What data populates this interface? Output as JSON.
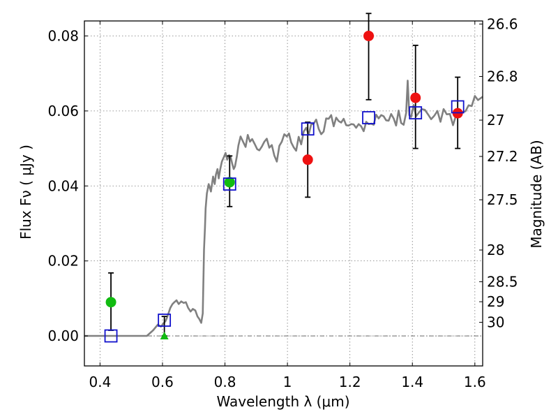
{
  "chart_data": {
    "type": "scatter",
    "title": "",
    "xlabel": "Wavelength  λ (μm)",
    "ylabel": "Flux  Fν  ( μJy )",
    "ylabel_right": "Magnitude (AB)",
    "xlim": [
      0.35,
      1.625
    ],
    "ylim": [
      -0.008,
      0.084
    ],
    "x_ticks": [
      0.4,
      0.6,
      0.8,
      1.0,
      1.2,
      1.4,
      1.6
    ],
    "x_tick_labels": [
      "0.4",
      "0.6",
      "0.8",
      "1",
      "1.2",
      "1.4",
      "1.6"
    ],
    "y_ticks": [
      0.0,
      0.02,
      0.04,
      0.06,
      0.08
    ],
    "y_tick_labels": [
      "0.00",
      "0.02",
      "0.04",
      "0.06",
      "0.08"
    ],
    "right_axis_ticks": [
      {
        "mag": 26.6,
        "label": "26.6"
      },
      {
        "mag": 26.8,
        "label": "26.8"
      },
      {
        "mag": 27.0,
        "label": "27"
      },
      {
        "mag": 27.2,
        "label": "27.2"
      },
      {
        "mag": 27.5,
        "label": "27.5"
      },
      {
        "mag": 28.0,
        "label": "28"
      },
      {
        "mag": 28.5,
        "label": "28.5"
      },
      {
        "mag": 29.0,
        "label": "29"
      },
      {
        "mag": 30.0,
        "label": "30"
      }
    ],
    "grid": true,
    "colors": {
      "model": "#808080",
      "observed_hst": "#ee1111",
      "observed_other": "#11bb11",
      "model_photometry": "#1111cc",
      "errorbar": "#000000",
      "zero_line": "#555555"
    },
    "series": [
      {
        "kind": "line",
        "x": [
          0.35,
          0.55,
          0.57,
          0.585,
          0.595,
          0.605,
          0.61,
          0.615,
          0.625,
          0.632,
          0.638,
          0.645,
          0.652,
          0.66,
          0.668,
          0.675,
          0.682,
          0.69,
          0.697,
          0.705,
          0.712,
          0.718,
          0.724,
          0.729,
          0.733,
          0.736,
          0.738,
          0.742,
          0.748,
          0.755,
          0.762,
          0.767,
          0.771,
          0.776,
          0.78,
          0.785,
          0.79,
          0.797,
          0.802,
          0.807,
          0.813,
          0.818,
          0.823,
          0.828,
          0.832,
          0.838,
          0.843,
          0.85,
          0.858,
          0.866,
          0.873,
          0.88,
          0.887,
          0.895,
          0.903,
          0.91,
          0.918,
          0.926,
          0.934,
          0.942,
          0.95,
          0.958,
          0.966,
          0.974,
          0.982,
          0.99,
          0.998,
          1.005,
          1.012,
          1.02,
          1.028,
          1.036,
          1.044,
          1.052,
          1.06,
          1.068,
          1.076,
          1.084,
          1.092,
          1.1,
          1.108,
          1.116,
          1.124,
          1.132,
          1.14,
          1.148,
          1.156,
          1.164,
          1.172,
          1.18,
          1.188,
          1.196,
          1.204,
          1.212,
          1.22,
          1.228,
          1.236,
          1.244,
          1.252,
          1.26,
          1.268,
          1.276,
          1.284,
          1.292,
          1.3,
          1.308,
          1.316,
          1.324,
          1.332,
          1.34,
          1.348,
          1.356,
          1.364,
          1.372,
          1.38,
          1.385,
          1.39,
          1.396,
          1.404,
          1.412,
          1.42,
          1.43,
          1.44,
          1.45,
          1.46,
          1.47,
          1.48,
          1.49,
          1.5,
          1.51,
          1.52,
          1.53,
          1.54,
          1.55,
          1.56,
          1.57,
          1.58,
          1.59,
          1.6,
          1.61,
          1.625
        ],
        "y": [
          0.0,
          0.0,
          0.0015,
          0.003,
          0.0025,
          0.0035,
          0.004,
          0.005,
          0.0075,
          0.0085,
          0.009,
          0.0095,
          0.0085,
          0.0092,
          0.0088,
          0.009,
          0.0075,
          0.0065,
          0.0072,
          0.0068,
          0.0052,
          0.0045,
          0.0035,
          0.006,
          0.023,
          0.029,
          0.034,
          0.038,
          0.0405,
          0.0385,
          0.0425,
          0.0405,
          0.043,
          0.0445,
          0.042,
          0.0445,
          0.0465,
          0.0478,
          0.0488,
          0.047,
          0.0482,
          0.0478,
          0.046,
          0.0445,
          0.0452,
          0.0478,
          0.0508,
          0.0532,
          0.0518,
          0.0504,
          0.0536,
          0.0518,
          0.0525,
          0.0512,
          0.0498,
          0.0495,
          0.0505,
          0.0518,
          0.0526,
          0.0502,
          0.0509,
          0.0481,
          0.0465,
          0.0507,
          0.0518,
          0.0538,
          0.0532,
          0.054,
          0.0516,
          0.0503,
          0.0494,
          0.0531,
          0.0511,
          0.0545,
          0.0555,
          0.0537,
          0.0564,
          0.0566,
          0.0577,
          0.0552,
          0.0538,
          0.0545,
          0.058,
          0.0579,
          0.0589,
          0.0559,
          0.0582,
          0.0573,
          0.0569,
          0.0579,
          0.0562,
          0.0561,
          0.0565,
          0.0564,
          0.0555,
          0.0565,
          0.0559,
          0.0546,
          0.0571,
          0.0565,
          0.0566,
          0.0563,
          0.059,
          0.058,
          0.0589,
          0.0586,
          0.0575,
          0.0574,
          0.0592,
          0.058,
          0.0561,
          0.0601,
          0.0568,
          0.0563,
          0.0595,
          0.0681,
          0.0589,
          0.0584,
          0.0616,
          0.0586,
          0.0595,
          0.0605,
          0.0603,
          0.0591,
          0.0578,
          0.0587,
          0.06,
          0.0571,
          0.0605,
          0.0591,
          0.0592,
          0.0562,
          0.0589,
          0.06,
          0.0597,
          0.0599,
          0.0615,
          0.0613,
          0.064,
          0.0629,
          0.0638
        ]
      },
      {
        "name": "",
        "kind": "points",
        "marker": "circle",
        "color": "red",
        "x": [
          1.065,
          1.26,
          1.41,
          1.545
        ],
        "y": [
          0.047,
          0.08,
          0.0635,
          0.0594
        ],
        "yerr_low": [
          0.037,
          0.063,
          0.05,
          0.05
        ],
        "yerr_high": [
          0.057,
          0.086,
          0.0775,
          0.069
        ]
      },
      {
        "kind": "points",
        "marker": "circle",
        "color": "green",
        "x": [
          0.435,
          0.815
        ],
        "y": [
          0.009,
          0.041
        ],
        "yerr_low": [
          0.0015,
          0.0345
        ],
        "yerr_high": [
          0.0168,
          0.048
        ]
      },
      {
        "kind": "points",
        "marker": "triangle",
        "color": "green",
        "x": [
          0.606
        ],
        "y": [
          0.0
        ],
        "yerr_low": [
          0.0
        ],
        "yerr_high": [
          0.0052
        ]
      },
      {
        "kind": "points",
        "marker": "square",
        "color": "blue",
        "x": [
          0.435,
          0.606,
          0.815,
          1.065,
          1.26,
          1.41,
          1.545
        ],
        "y": [
          0.0,
          0.0042,
          0.0405,
          0.0552,
          0.0582,
          0.0595,
          0.0611
        ]
      }
    ]
  }
}
